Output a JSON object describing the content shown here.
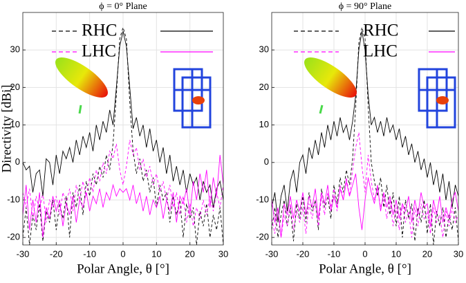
{
  "chart_data": [
    {
      "type": "line",
      "title": "ϕ = 0° Plane",
      "x_label": "Polar Angle, θ [°]",
      "y_label": "Directivity [dBi]",
      "xlim": [
        -30,
        30
      ],
      "ylim": [
        -22,
        40
      ],
      "xticks": [
        -30,
        -20,
        -10,
        0,
        10,
        20,
        30
      ],
      "yticks": [
        -20,
        -10,
        0,
        10,
        20,
        30
      ],
      "grid": true,
      "x": [
        -30,
        -29,
        -28,
        -27,
        -26,
        -25,
        -24,
        -23,
        -22,
        -21,
        -20,
        -19,
        -18,
        -17,
        -16,
        -15,
        -14,
        -13,
        -12,
        -11,
        -10,
        -9,
        -8,
        -7,
        -6,
        -5,
        -4,
        -3,
        -2,
        -1,
        0,
        1,
        2,
        3,
        4,
        5,
        6,
        7,
        8,
        9,
        10,
        11,
        12,
        13,
        14,
        15,
        16,
        17,
        18,
        19,
        20,
        21,
        22,
        23,
        24,
        25,
        26,
        27,
        28,
        29,
        30
      ],
      "series": [
        {
          "name": "RHC",
          "color": "#000000",
          "values": [
            0,
            -2,
            -1,
            -8,
            -3,
            -2,
            -9,
            1,
            0,
            -6,
            2,
            -3,
            3,
            1,
            4,
            0,
            6,
            2,
            7,
            4,
            8,
            3,
            10,
            6,
            11,
            8,
            14,
            10,
            20,
            31,
            35,
            31,
            20,
            9,
            12,
            7,
            10,
            4,
            9,
            3,
            6,
            0,
            4,
            -3,
            2,
            -5,
            -1,
            -6,
            -2,
            -8,
            -3,
            -6,
            -4,
            -10,
            -5,
            -8,
            -6,
            -12,
            -7,
            -5,
            -10
          ],
          "dashed_values": [
            -20,
            -12,
            -22,
            -14,
            -18,
            -11,
            -21,
            -13,
            -16,
            -10,
            -18,
            -11,
            -15,
            -9,
            -20,
            -8,
            -12,
            -6,
            -14,
            -5,
            -9,
            -3,
            -6,
            -1,
            -4,
            2,
            -2,
            5,
            18,
            33,
            36,
            33,
            16,
            3,
            -3,
            1,
            -5,
            -2,
            -8,
            -4,
            -12,
            -6,
            -10,
            -8,
            -16,
            -9,
            -14,
            -10,
            -20,
            -11,
            -15,
            -12,
            -22,
            -13,
            -17,
            -11,
            -20,
            -14,
            -18,
            -12,
            -22
          ]
        },
        {
          "name": "LHC",
          "color": "#ff00ff",
          "values": [
            -14,
            -6,
            -18,
            -10,
            -16,
            -8,
            -20,
            -12,
            -15,
            -9,
            -13,
            -10,
            -17,
            -11,
            -14,
            -9,
            -16,
            -10,
            -12,
            -8,
            -13,
            -9,
            -11,
            -7,
            -12,
            -8,
            -10,
            -6,
            -9,
            -7,
            -8,
            -7,
            -10,
            -6,
            -11,
            -8,
            -13,
            -9,
            -14,
            -10,
            -12,
            -9,
            -15,
            -10,
            -13,
            -8,
            -16,
            -9,
            -11,
            -7,
            -14,
            -5,
            -10,
            -3,
            -8,
            -2,
            -12,
            -4,
            -9,
            2,
            -6
          ],
          "dashed_values": [
            -8,
            -12,
            -7,
            -15,
            -9,
            -13,
            -8,
            -16,
            -10,
            -12,
            -9,
            -14,
            -8,
            -11,
            -7,
            -13,
            -6,
            -10,
            -5,
            -9,
            -4,
            -8,
            -2,
            -5,
            0,
            -3,
            3,
            1,
            5,
            -2,
            -6,
            -1,
            6,
            2,
            4,
            -2,
            1,
            -4,
            -1,
            -6,
            -3,
            -8,
            -5,
            -10,
            -6,
            -12,
            -8,
            -14,
            -9,
            -16,
            -11,
            -17,
            -12,
            -15,
            -10,
            -14,
            -9,
            -13,
            -8,
            -12,
            -6
          ]
        }
      ]
    },
    {
      "type": "line",
      "title": "ϕ = 90° Plane",
      "x_label": "Polar Angle, θ [°]",
      "xlim": [
        -30,
        30
      ],
      "ylim": [
        -22,
        40
      ],
      "xticks": [
        -30,
        -20,
        -10,
        0,
        10,
        20,
        30
      ],
      "yticks": [
        -20,
        -10,
        0,
        10,
        20,
        30
      ],
      "grid": true,
      "x": [
        -30,
        -29,
        -28,
        -27,
        -26,
        -25,
        -24,
        -23,
        -22,
        -21,
        -20,
        -19,
        -18,
        -17,
        -16,
        -15,
        -14,
        -13,
        -12,
        -11,
        -10,
        -9,
        -8,
        -7,
        -6,
        -5,
        -4,
        -3,
        -2,
        -1,
        0,
        1,
        2,
        3,
        4,
        5,
        6,
        7,
        8,
        9,
        10,
        11,
        12,
        13,
        14,
        15,
        16,
        17,
        18,
        19,
        20,
        21,
        22,
        23,
        24,
        25,
        26,
        27,
        28,
        29,
        30
      ],
      "series": [
        {
          "name": "RHC",
          "color": "#000000",
          "values": [
            -12,
            -8,
            -16,
            -9,
            -6,
            -13,
            -5,
            -2,
            -8,
            0,
            2,
            -3,
            4,
            1,
            6,
            2,
            8,
            4,
            10,
            6,
            11,
            7,
            12,
            8,
            10,
            6,
            11,
            18,
            30,
            35,
            30,
            18,
            10,
            12,
            8,
            11,
            7,
            12,
            8,
            10,
            6,
            9,
            4,
            7,
            2,
            5,
            0,
            3,
            -2,
            1,
            -4,
            0,
            -6,
            -2,
            -8,
            -3,
            -10,
            -5,
            -12,
            -6,
            -9
          ],
          "dashed_values": [
            -18,
            -12,
            -20,
            -14,
            -10,
            -17,
            -12,
            -21,
            -11,
            -15,
            -9,
            -16,
            -8,
            -13,
            -10,
            -18,
            -7,
            -12,
            -9,
            -15,
            -6,
            -11,
            -4,
            -8,
            -2,
            -6,
            1,
            15,
            32,
            36,
            33,
            15,
            0,
            -5,
            -9,
            -4,
            -12,
            -6,
            -14,
            -8,
            -17,
            -9,
            -20,
            -10,
            -15,
            -11,
            -21,
            -12,
            -16,
            -10,
            -19,
            -11,
            -22,
            -13,
            -17,
            -12,
            -20,
            -14,
            -18,
            -12,
            -21
          ]
        },
        {
          "name": "LHC",
          "color": "#ff00ff",
          "values": [
            -10,
            -16,
            -12,
            -20,
            -11,
            -14,
            -9,
            -15,
            -10,
            -13,
            -8,
            -14,
            -9,
            -12,
            -7,
            -15,
            -8,
            -11,
            -6,
            -13,
            -9,
            -12,
            -7,
            -10,
            -5,
            -9,
            -6,
            -3,
            -12,
            -18,
            -10,
            -4,
            -8,
            -11,
            -6,
            -13,
            -8,
            -12,
            -9,
            -14,
            -10,
            -15,
            -11,
            -13,
            -9,
            -16,
            -10,
            -14,
            -8,
            -12,
            -11,
            -17,
            -10,
            -14,
            -9,
            -16,
            -12,
            -15,
            -10,
            -8,
            -13
          ],
          "dashed_values": [
            -15,
            -19,
            -12,
            -20,
            -14,
            -17,
            -11,
            -18,
            -13,
            -16,
            -12,
            -19,
            -11,
            -15,
            -10,
            -17,
            -9,
            -14,
            -8,
            -12,
            -7,
            -13,
            -6,
            -10,
            -4,
            -9,
            -2,
            4,
            8,
            -1,
            -8,
            2,
            -5,
            -10,
            -7,
            -12,
            -9,
            -15,
            -10,
            -17,
            -12,
            -18,
            -11,
            -16,
            -13,
            -20,
            -12,
            -17,
            -11,
            -15,
            -13,
            -19,
            -12,
            -16,
            -14,
            -20,
            -13,
            -17,
            -12,
            -16,
            -14
          ]
        }
      ]
    }
  ]
}
